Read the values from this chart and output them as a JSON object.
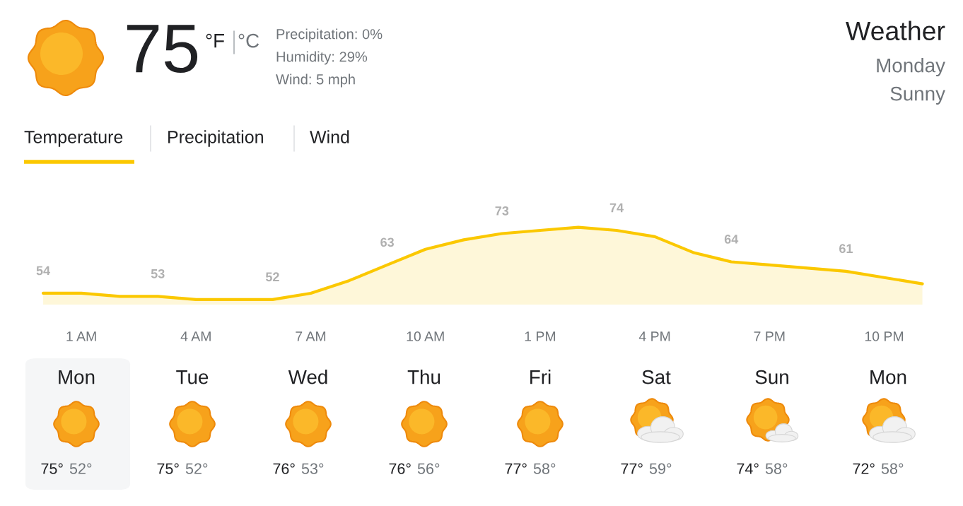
{
  "chart_data": {
    "type": "area",
    "title": "Weather",
    "subtitle": "Monday",
    "annotations": [
      "75",
      "°F",
      "°C",
      "Precipitation: 0%",
      "Humidity: 29%",
      "Wind: 5 mph",
      "Sunny",
      "Temperature",
      "Precipitation",
      "Wind",
      "Mon",
      "75°",
      "52°",
      "Tue",
      "75°",
      "52°",
      "Wed",
      "76°",
      "53°",
      "Thu",
      "76°",
      "56°",
      "Fri",
      "77°",
      "58°",
      "Sat",
      "77°",
      "59°",
      "Sun",
      "74°",
      "58°",
      "Mon",
      "72°",
      "58°"
    ],
    "categories": [
      null,
      "1 AM",
      null,
      null,
      "4 AM",
      null,
      null,
      "7 AM",
      null,
      null,
      "10 AM",
      null,
      null,
      "1 PM",
      null,
      null,
      "4 PM",
      null,
      null,
      "7 PM",
      null,
      null,
      "10 PM",
      null
    ],
    "tick_labels": "x",
    "series": [
      {
        "color": "#fbc800",
        "values": [
          54,
          54,
          53,
          53,
          52,
          52,
          52,
          54,
          58,
          63,
          68,
          71,
          73,
          74,
          75,
          74,
          72,
          67,
          64,
          63,
          62,
          61,
          59,
          57
        ],
        "value_labels": [
          "54",
          null,
          null,
          "53",
          null,
          null,
          "52",
          null,
          null,
          "63",
          null,
          null,
          "73",
          null,
          null,
          "74",
          null,
          null,
          "64",
          null,
          null,
          "61",
          null,
          null
        ]
      }
    ]
  }
}
